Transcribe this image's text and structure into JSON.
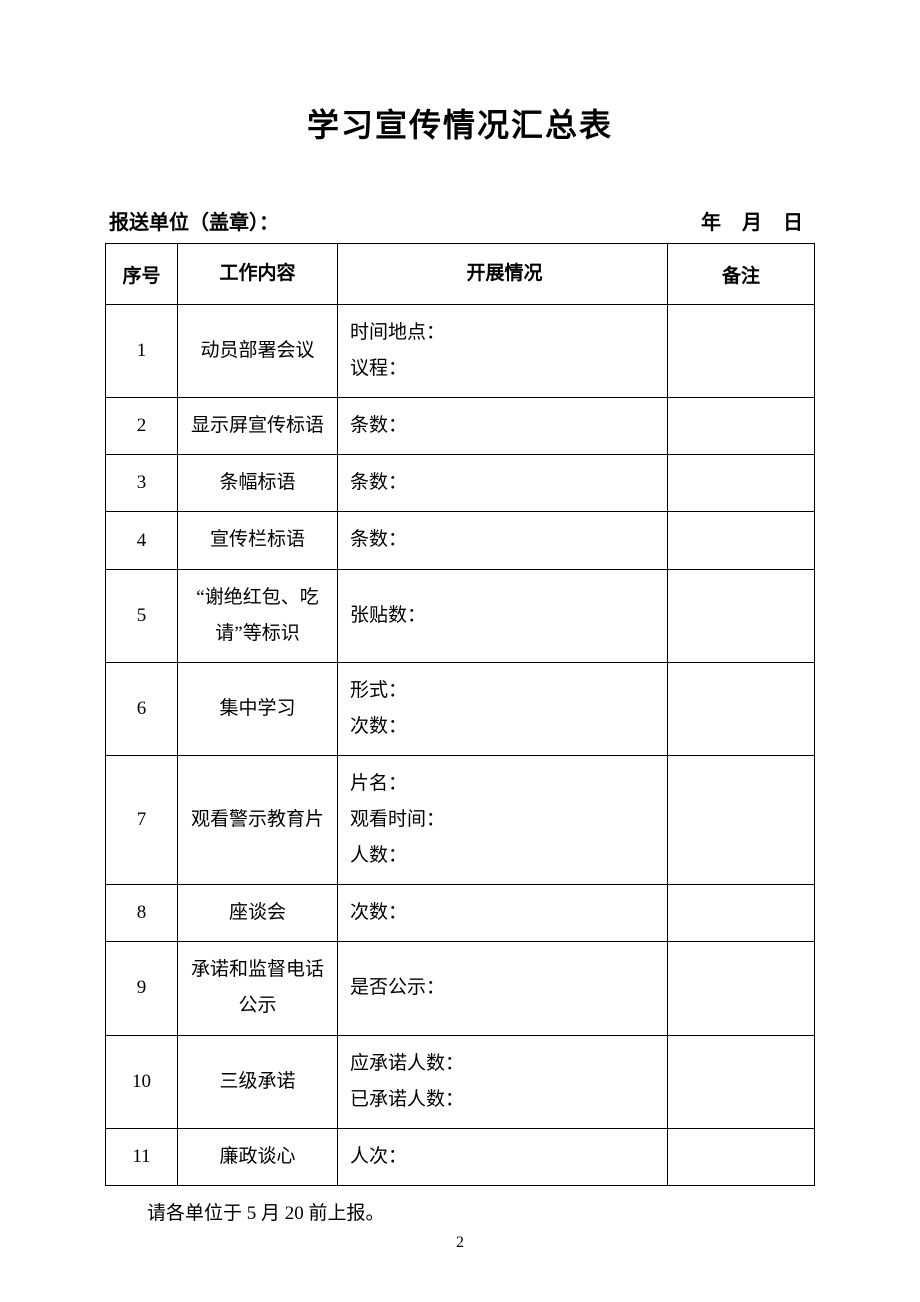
{
  "title": "学习宣传情况汇总表",
  "header": {
    "left": "报送单位（盖章）：",
    "right": "年  月  日"
  },
  "columns": {
    "seq": "序号",
    "content": "工作内容",
    "status": "开展情况",
    "remark": "备注"
  },
  "rows": [
    {
      "seq": "1",
      "content": "动员部署会议",
      "status_lines": [
        "时间地点：",
        "议程："
      ],
      "remark": ""
    },
    {
      "seq": "2",
      "content": "显示屏宣传标语",
      "status_lines": [
        "条数："
      ],
      "remark": ""
    },
    {
      "seq": "3",
      "content": "条幅标语",
      "status_lines": [
        "条数："
      ],
      "remark": ""
    },
    {
      "seq": "4",
      "content": "宣传栏标语",
      "status_lines": [
        "条数："
      ],
      "remark": ""
    },
    {
      "seq": "5",
      "content": "“谢绝红包、吃请”等标识",
      "status_lines": [
        "张贴数："
      ],
      "remark": ""
    },
    {
      "seq": "6",
      "content": "集中学习",
      "status_lines": [
        "形式：",
        "次数："
      ],
      "remark": ""
    },
    {
      "seq": "7",
      "content": "观看警示教育片",
      "status_lines": [
        "片名：",
        "观看时间：",
        "人数："
      ],
      "remark": ""
    },
    {
      "seq": "8",
      "content": "座谈会",
      "status_lines": [
        "次数："
      ],
      "remark": ""
    },
    {
      "seq": "9",
      "content": "承诺和监督电话公示",
      "status_lines": [
        "是否公示："
      ],
      "remark": ""
    },
    {
      "seq": "10",
      "content": "三级承诺",
      "status_lines": [
        "应承诺人数：",
        "已承诺人数："
      ],
      "remark": ""
    },
    {
      "seq": "11",
      "content": "廉政谈心",
      "status_lines": [
        "人次："
      ],
      "remark": ""
    }
  ],
  "footnote": "请各单位于 5 月 20 前上报。",
  "page_number": "2",
  "style": {
    "background_color": "#ffffff",
    "text_color": "#000000",
    "border_color": "#000000",
    "title_fontsize": 32,
    "body_fontsize": 19,
    "header_fontsize": 20,
    "col_widths": {
      "seq": 72,
      "content": 160,
      "status": 330
    }
  }
}
